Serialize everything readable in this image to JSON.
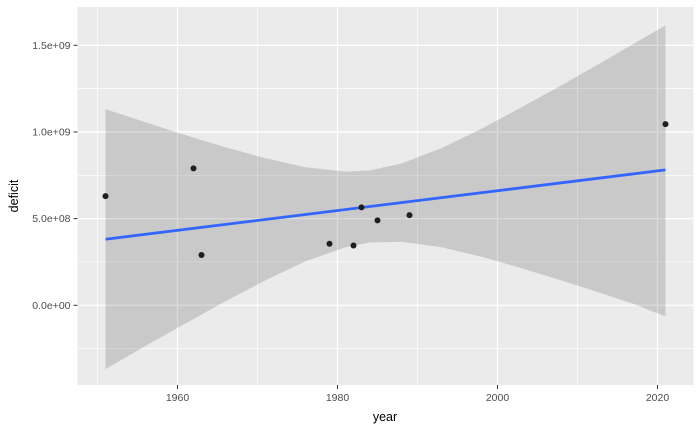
{
  "chart_data": {
    "type": "scatter",
    "title": "",
    "xlabel": "year",
    "ylabel": "deficit",
    "x_major_ticks": [
      1960,
      1980,
      2000,
      2020
    ],
    "x_minor_ticks": [
      1950,
      1970,
      1990,
      2010
    ],
    "y_major_ticks": [
      {
        "label": "0.0e+00",
        "value": 0
      },
      {
        "label": "5.0e+08",
        "value": 500000000
      },
      {
        "label": "1.0e+09",
        "value": 1000000000
      },
      {
        "label": "1.5e+09",
        "value": 1500000000
      }
    ],
    "y_minor_tick_values": [
      -250000000,
      250000000,
      750000000,
      1250000000
    ],
    "xlim": [
      1947.5,
      2024.5
    ],
    "ylim": [
      -460000000,
      1721000000
    ],
    "grid": true,
    "legend": false,
    "points": [
      {
        "year": 1951,
        "deficit": 630000000
      },
      {
        "year": 1962,
        "deficit": 790000000
      },
      {
        "year": 1963,
        "deficit": 290000000
      },
      {
        "year": 1979,
        "deficit": 355000000
      },
      {
        "year": 1982,
        "deficit": 345000000
      },
      {
        "year": 1983,
        "deficit": 565000000
      },
      {
        "year": 1985,
        "deficit": 490000000
      },
      {
        "year": 1989,
        "deficit": 520000000
      },
      {
        "year": 2021,
        "deficit": 1045000000
      }
    ],
    "trend_line": {
      "method": "linear",
      "x": [
        1951,
        2021
      ],
      "y": [
        381000000,
        781000000
      ]
    },
    "ci_band": [
      {
        "x": 1951,
        "lower": -368000000,
        "upper": 1132000000
      },
      {
        "x": 1956,
        "lower": -235000000,
        "upper": 1056000000
      },
      {
        "x": 1961,
        "lower": -105000000,
        "upper": 982000000
      },
      {
        "x": 1966,
        "lower": 23000000,
        "upper": 912000000
      },
      {
        "x": 1971,
        "lower": 144000000,
        "upper": 848000000
      },
      {
        "x": 1976,
        "lower": 253000000,
        "upper": 796000000
      },
      {
        "x": 1981,
        "lower": 335000000,
        "upper": 771000000
      },
      {
        "x": 1984,
        "lower": 362000000,
        "upper": 778000000
      },
      {
        "x": 1988,
        "lower": 367000000,
        "upper": 818000000
      },
      {
        "x": 1993,
        "lower": 335000000,
        "upper": 907000000
      },
      {
        "x": 1998,
        "lower": 280000000,
        "upper": 1019000000
      },
      {
        "x": 2003,
        "lower": 214000000,
        "upper": 1142000000
      },
      {
        "x": 2008,
        "lower": 143000000,
        "upper": 1270000000
      },
      {
        "x": 2013,
        "lower": 69000000,
        "upper": 1401000000
      },
      {
        "x": 2017,
        "lower": 8000000,
        "upper": 1508000000
      },
      {
        "x": 2021,
        "lower": -65000000,
        "upper": 1615000000
      }
    ],
    "colors": {
      "figure_background": "#FFFFFF",
      "panel_background": "#EBEBEB",
      "grid_line": "#FFFFFF",
      "ci_band_fill": "rgba(0,0,0,0.14)",
      "trend_line": "#3366FF",
      "point": "#1F1F1F",
      "tick_mark": "#333333",
      "tick_label": "#4D4D4D",
      "axis_title": "#000000"
    }
  }
}
